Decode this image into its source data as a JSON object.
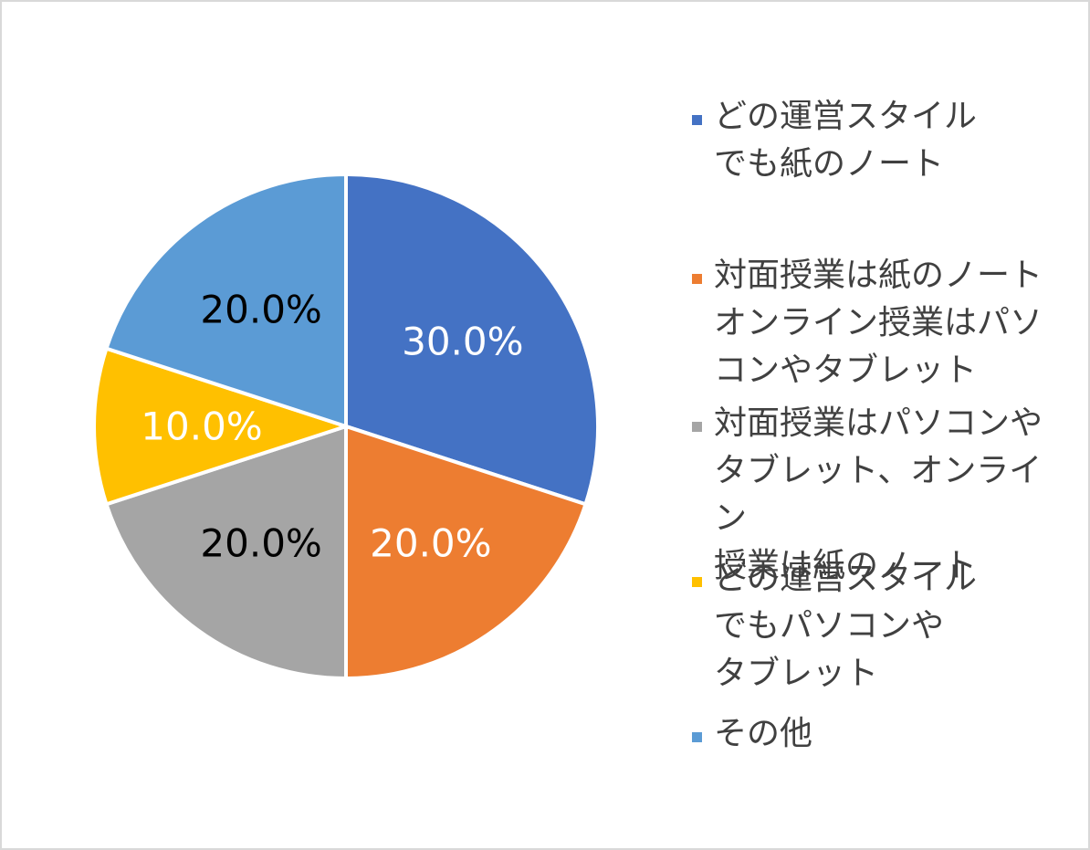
{
  "chart_data": {
    "type": "pie",
    "title": "",
    "slices": [
      {
        "label": "どの運営スタイル\nでも紙のノート",
        "value": 30.0,
        "display": "30.0%",
        "color": "#4472c4",
        "label_color": "#ffffff"
      },
      {
        "label": "対面授業は紙のノート\nオンライン授業はパソ\nコンやタブレット",
        "value": 20.0,
        "display": "20.0%",
        "color": "#ed7d31",
        "label_color": "#ffffff"
      },
      {
        "label": "対面授業はパソコンや\nタブレット、オンライン\n授業は紙のノート",
        "value": 20.0,
        "display": "20.0%",
        "color": "#a5a5a5",
        "label_color": "#000000"
      },
      {
        "label": "どの運営スタイル\nでもパソコンや\nタブレット",
        "value": 10.0,
        "display": "10.0%",
        "color": "#ffc000",
        "label_color": "#ffffff"
      },
      {
        "label": "その他",
        "value": 20.0,
        "display": "20.0%",
        "color": "#5b9bd5",
        "label_color": "#000000"
      }
    ],
    "legend_position": "right"
  }
}
